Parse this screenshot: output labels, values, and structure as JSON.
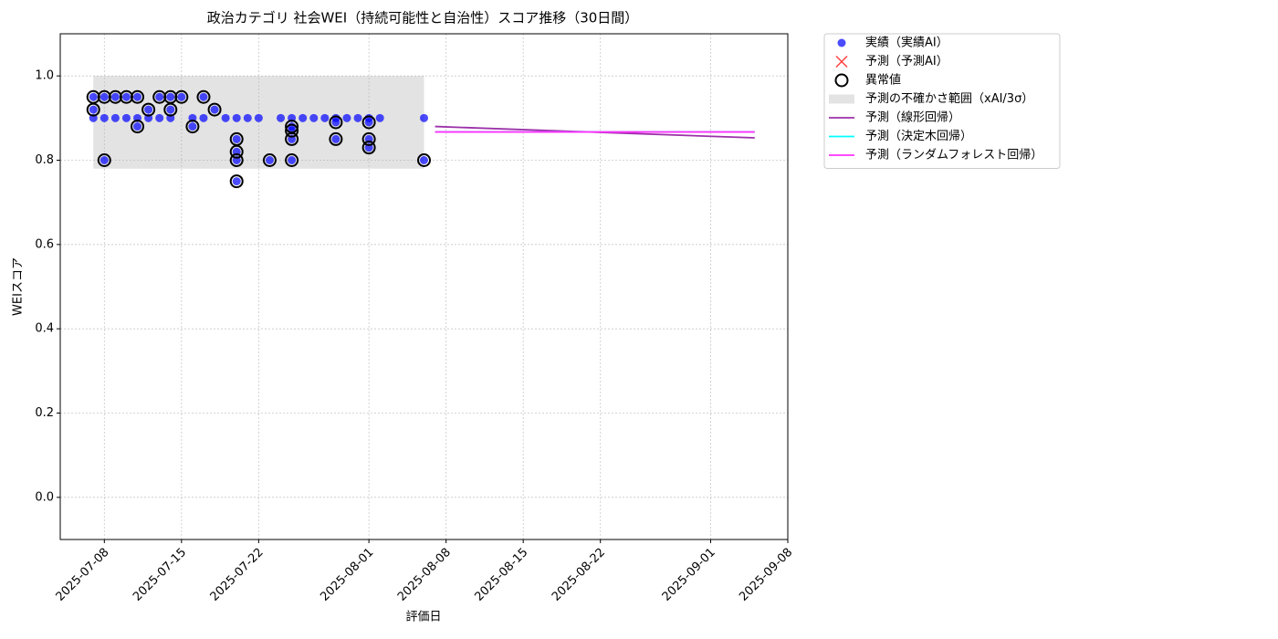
{
  "chart_data": {
    "type": "scatter",
    "title": "政治カテゴリ 社会WEI（持続可能性と自治性）スコア推移（30日間）",
    "xlabel": "評価日",
    "ylabel": "WEIスコア",
    "xlim": [
      "2025-07-04",
      "2025-09-08"
    ],
    "xticks": [
      "2025-07-08",
      "2025-07-15",
      "2025-07-22",
      "2025-08-01",
      "2025-08-08",
      "2025-08-15",
      "2025-08-22",
      "2025-09-01",
      "2025-09-08"
    ],
    "ylim": [
      -0.1,
      1.1
    ],
    "yticks": [
      {
        "value": 0,
        "label": "0.0"
      },
      0.2,
      0.4,
      0.6,
      0.8,
      {
        "value": 1,
        "label": "1.0"
      }
    ],
    "grid": true,
    "legend": "outside-upper-right",
    "series": [
      {
        "name": "予測の不確かさ範囲（xAI/3σ）",
        "kind": "band",
        "color": "#b0b0b0",
        "x": [
          "2025-07-07",
          "2025-08-06"
        ],
        "lower": 0.78,
        "upper": 1.0
      },
      {
        "name": "実績（実績AI）",
        "kind": "scatter",
        "color": "#0000ff",
        "x": [
          "2025-07-07",
          "2025-07-07",
          "2025-07-07",
          "2025-07-08",
          "2025-07-08",
          "2025-07-08",
          "2025-07-09",
          "2025-07-09",
          "2025-07-10",
          "2025-07-10",
          "2025-07-11",
          "2025-07-11",
          "2025-07-11",
          "2025-07-12",
          "2025-07-12",
          "2025-07-13",
          "2025-07-13",
          "2025-07-14",
          "2025-07-14",
          "2025-07-14",
          "2025-07-15",
          "2025-07-16",
          "2025-07-16",
          "2025-07-17",
          "2025-07-17",
          "2025-07-18",
          "2025-07-19",
          "2025-07-20",
          "2025-07-20",
          "2025-07-20",
          "2025-07-20",
          "2025-07-20",
          "2025-07-21",
          "2025-07-22",
          "2025-07-23",
          "2025-07-24",
          "2025-07-25",
          "2025-07-25",
          "2025-07-25",
          "2025-07-25",
          "2025-07-25",
          "2025-07-26",
          "2025-07-27",
          "2025-07-28",
          "2025-07-29",
          "2025-07-29",
          "2025-07-29",
          "2025-07-30",
          "2025-07-31",
          "2025-08-01",
          "2025-08-01",
          "2025-08-01",
          "2025-08-01",
          "2025-08-02",
          "2025-08-06",
          "2025-08-06"
        ],
        "values": [
          0.95,
          0.92,
          0.9,
          0.8,
          0.95,
          0.9,
          0.95,
          0.9,
          0.95,
          0.9,
          0.95,
          0.88,
          0.9,
          0.92,
          0.9,
          0.95,
          0.9,
          0.95,
          0.92,
          0.9,
          0.95,
          0.88,
          0.9,
          0.95,
          0.9,
          0.92,
          0.9,
          0.8,
          0.85,
          0.82,
          0.75,
          0.9,
          0.9,
          0.9,
          0.8,
          0.9,
          0.8,
          0.85,
          0.88,
          0.87,
          0.9,
          0.9,
          0.9,
          0.9,
          0.85,
          0.89,
          0.9,
          0.9,
          0.9,
          0.83,
          0.85,
          0.89,
          0.9,
          0.9,
          0.8,
          0.9
        ]
      },
      {
        "name": "予測（予測AI）",
        "kind": "cross",
        "color": "#ff0000",
        "x": [],
        "values": []
      },
      {
        "name": "異常値",
        "kind": "ring",
        "color": "#000000",
        "x": [
          "2025-07-07",
          "2025-07-07",
          "2025-07-08",
          "2025-07-08",
          "2025-07-09",
          "2025-07-10",
          "2025-07-11",
          "2025-07-11",
          "2025-07-12",
          "2025-07-13",
          "2025-07-14",
          "2025-07-14",
          "2025-07-15",
          "2025-07-16",
          "2025-07-17",
          "2025-07-18",
          "2025-07-20",
          "2025-07-20",
          "2025-07-20",
          "2025-07-20",
          "2025-07-23",
          "2025-07-25",
          "2025-07-25",
          "2025-07-25",
          "2025-07-25",
          "2025-07-29",
          "2025-07-29",
          "2025-08-01",
          "2025-08-01",
          "2025-08-01",
          "2025-08-06"
        ],
        "values": [
          0.95,
          0.92,
          0.8,
          0.95,
          0.95,
          0.95,
          0.88,
          0.95,
          0.92,
          0.95,
          0.95,
          0.92,
          0.95,
          0.88,
          0.95,
          0.92,
          0.8,
          0.85,
          0.82,
          0.75,
          0.8,
          0.8,
          0.85,
          0.88,
          0.87,
          0.85,
          0.89,
          0.83,
          0.85,
          0.89,
          0.8
        ]
      },
      {
        "name": "予測（線形回帰）",
        "kind": "line",
        "color": "#9b30a8",
        "x": [
          "2025-08-07",
          "2025-09-05"
        ],
        "values": [
          0.88,
          0.853
        ]
      },
      {
        "name": "予測（決定木回帰）",
        "kind": "line",
        "color": "#00ffff",
        "x": [
          "2025-08-07",
          "2025-09-05"
        ],
        "values": [
          0.867,
          0.867
        ]
      },
      {
        "name": "予測（ランダムフォレスト回帰）",
        "kind": "line",
        "color": "#ff33ff",
        "x": [
          "2025-08-07",
          "2025-09-05"
        ],
        "values": [
          0.867,
          0.867
        ]
      }
    ]
  }
}
